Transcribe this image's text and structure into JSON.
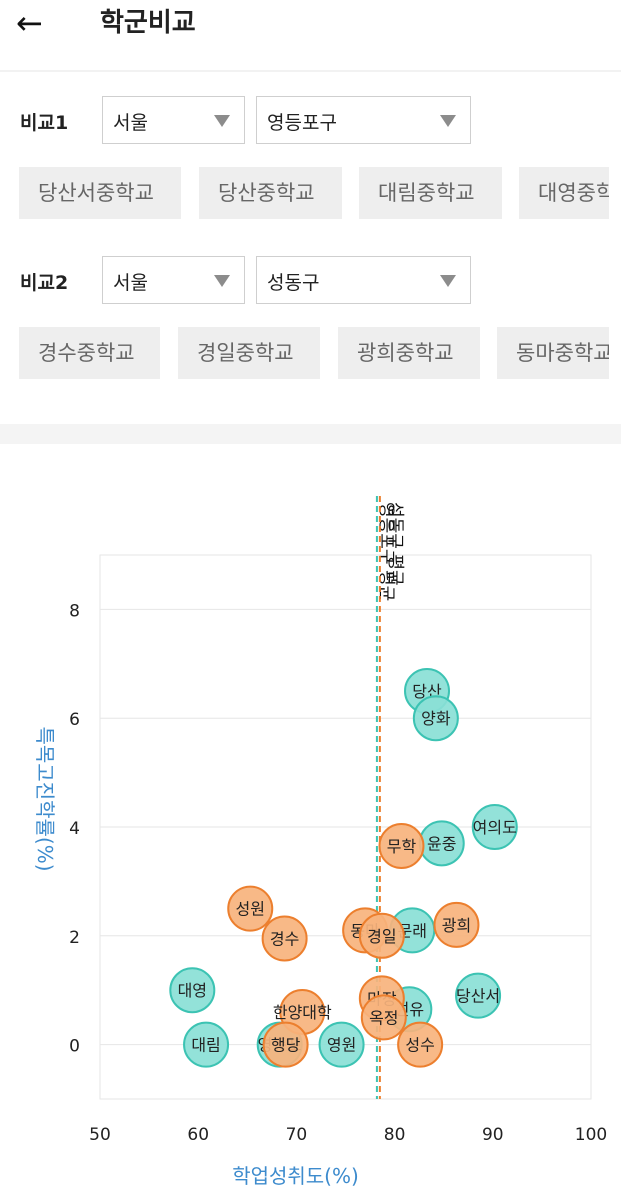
{
  "header": {
    "back_icon": "←",
    "title": "학군비교"
  },
  "compare1": {
    "label": "비교1",
    "city": "서울",
    "district": "영등포구",
    "schools": [
      "당산서중학교",
      "당산중학교",
      "대림중학교",
      "대영중학교"
    ]
  },
  "compare2": {
    "label": "비교2",
    "city": "서울",
    "district": "성동구",
    "schools": [
      "경수중학교",
      "경일중학교",
      "광희중학교",
      "동마중학교"
    ]
  },
  "colors": {
    "series1_fill": "#8ae0d6",
    "series1_stroke": "#3cc3b3",
    "series2_fill": "#f7b37d",
    "series2_stroke": "#ec7f2e",
    "axis_title": "#3d8bcd"
  },
  "chart_data": {
    "type": "scatter",
    "xlabel": "학업성취도(%)",
    "ylabel": "특목고진학률(%)",
    "xlim": [
      50,
      100
    ],
    "ylim": [
      -1,
      9
    ],
    "xticks": [
      50,
      60,
      70,
      80,
      90,
      100
    ],
    "yticks": [
      0,
      2,
      4,
      6,
      8
    ],
    "grid": true,
    "reference_lines": [
      {
        "label": "영등포구 평균",
        "x": 78.2,
        "color": "#3cc3b3"
      },
      {
        "label": "성동구 평균",
        "x": 78.5,
        "color": "#ec7f2e"
      }
    ],
    "series": [
      {
        "color": "#8ae0d6",
        "points": [
          {
            "label": "당산",
            "x": 83.3,
            "y": 6.5
          },
          {
            "label": "양화",
            "x": 84.2,
            "y": 6.0
          },
          {
            "label": "여의도",
            "x": 90.2,
            "y": 4.0
          },
          {
            "label": "윤중",
            "x": 84.8,
            "y": 3.7
          },
          {
            "label": "문래",
            "x": 81.8,
            "y": 2.1
          },
          {
            "label": "대영",
            "x": 59.4,
            "y": 1.0
          },
          {
            "label": "당산서",
            "x": 88.5,
            "y": 0.9
          },
          {
            "label": "선유",
            "x": 81.5,
            "y": 0.65
          },
          {
            "label": "대림",
            "x": 60.8,
            "y": 0.0
          },
          {
            "label": "영등포",
            "x": 68.3,
            "y": 0.0
          },
          {
            "label": "영원",
            "x": 74.6,
            "y": 0.0
          }
        ]
      },
      {
        "color": "#f7b37d",
        "points": [
          {
            "label": "무학",
            "x": 80.7,
            "y": 3.65
          },
          {
            "label": "성원",
            "x": 65.3,
            "y": 2.5
          },
          {
            "label": "광희",
            "x": 86.3,
            "y": 2.2
          },
          {
            "label": "동마",
            "x": 77.0,
            "y": 2.1
          },
          {
            "label": "경일",
            "x": 78.7,
            "y": 2.0
          },
          {
            "label": "경수",
            "x": 68.8,
            "y": 1.95
          },
          {
            "label": "마장",
            "x": 78.7,
            "y": 0.85
          },
          {
            "label": "한양대학",
            "x": 70.6,
            "y": 0.6
          },
          {
            "label": "옥정",
            "x": 78.9,
            "y": 0.5
          },
          {
            "label": "행당",
            "x": 68.9,
            "y": 0.0
          },
          {
            "label": "성수",
            "x": 82.6,
            "y": 0.0
          }
        ]
      }
    ]
  }
}
